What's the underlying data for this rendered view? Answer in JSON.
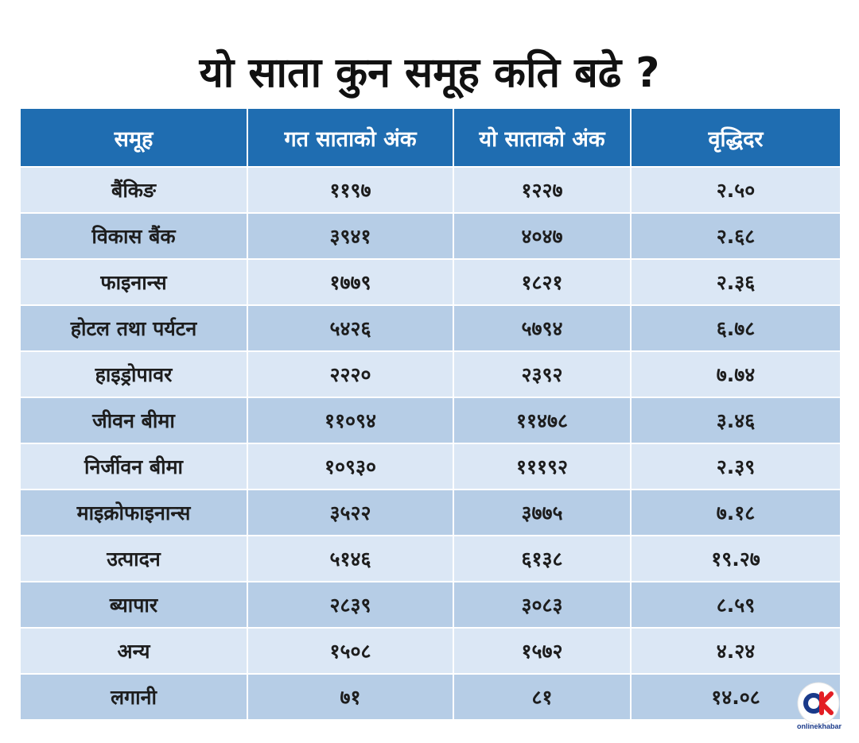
{
  "chart_data": {
    "type": "table",
    "title": "यो साता कुन समूह कति बढे ?",
    "columns": [
      "समूह",
      "गत साताको अंक",
      "यो साताको अंक",
      "वृद्धिदर"
    ],
    "rows": [
      [
        "बैंकिङ",
        "११९७",
        "१२२७",
        "२.५०"
      ],
      [
        "विकास बैंक",
        "३९४१",
        "४०४७",
        "२.६८"
      ],
      [
        "फाइनान्स",
        "१७७९",
        "१८२१",
        "२.३६"
      ],
      [
        "होटल तथा पर्यटन",
        "५४२६",
        "५७९४",
        "६.७८"
      ],
      [
        "हाइड्रोपावर",
        "२२२०",
        "२३९२",
        "७.७४"
      ],
      [
        "जीवन बीमा",
        "११०९४",
        "११४७८",
        "३.४६"
      ],
      [
        "निर्जीवन बीमा",
        "१०९३०",
        "१११९२",
        "२.३९"
      ],
      [
        "माइक्रोफाइनान्स",
        "३५२२",
        "३७७५",
        "७.१८"
      ],
      [
        "उत्पादन",
        "५१४६",
        "६१३८",
        "१९.२७"
      ],
      [
        "ब्यापार",
        "२८३९",
        "३०८३",
        "८.५९"
      ],
      [
        "अन्य",
        "१५०८",
        "१५७२",
        "४.२४"
      ],
      [
        "लगानी",
        "७१",
        "८१",
        "१४.०८"
      ]
    ],
    "colors": {
      "header_bg": "#1f6db1",
      "row_light": "#dbe7f5",
      "row_dark": "#b6cde6"
    }
  },
  "logo": {
    "mark": "OK",
    "text": "onlinekhabar",
    "colors": {
      "o": "#1a3a8a",
      "k": "#e31e24"
    }
  }
}
